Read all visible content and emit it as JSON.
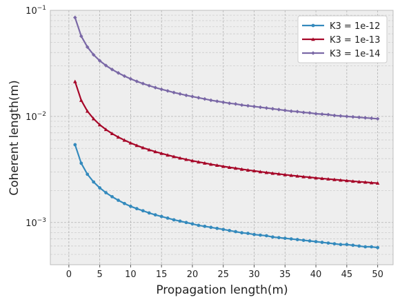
{
  "chart_data": {
    "type": "line",
    "xlabel": "Propagation length(m)",
    "ylabel": "Coherent length(m)",
    "xlim": [
      -3,
      52.5
    ],
    "ylim": [
      0.0004,
      0.1
    ],
    "y_scale": "log",
    "grid": true,
    "background": "#eeeeee",
    "legend_position": "top-right",
    "x_ticks": [
      0,
      5,
      10,
      15,
      20,
      25,
      30,
      35,
      40,
      45,
      50
    ],
    "y_ticks": [
      {
        "value": 0.001,
        "base": "10",
        "exp": "−3"
      },
      {
        "value": 0.01,
        "base": "10",
        "exp": "−2"
      },
      {
        "value": 0.1,
        "base": "10",
        "exp": "−1"
      }
    ],
    "x": [
      1,
      2,
      3,
      4,
      5,
      6,
      7,
      8,
      9,
      10,
      11,
      12,
      13,
      14,
      15,
      16,
      17,
      18,
      19,
      20,
      21,
      22,
      23,
      24,
      25,
      26,
      27,
      28,
      29,
      30,
      31,
      32,
      33,
      34,
      35,
      36,
      37,
      38,
      39,
      40,
      41,
      42,
      43,
      44,
      45,
      46,
      47,
      48,
      49,
      50
    ],
    "series": [
      {
        "name": "K3 = 1e-12",
        "color": "#348abd",
        "marker": "circle",
        "values": [
          0.00541,
          0.00362,
          0.00285,
          0.00241,
          0.00212,
          0.00191,
          0.00175,
          0.00162,
          0.00151,
          0.00142,
          0.00135,
          0.00129,
          0.00123,
          0.00118,
          0.00114,
          0.0011,
          0.00106,
          0.00103,
          0.001,
          0.00097,
          0.00094,
          0.00092,
          0.0009,
          0.00088,
          0.00086,
          0.00084,
          0.00082,
          0.0008,
          0.00079,
          0.00077,
          0.00076,
          0.00075,
          0.00073,
          0.00072,
          0.00071,
          0.0007,
          0.00069,
          0.00068,
          0.00067,
          0.00066,
          0.00065,
          0.00064,
          0.00063,
          0.00062,
          0.00062,
          0.00061,
          0.0006,
          0.00059,
          0.00059,
          0.00058
        ]
      },
      {
        "name": "K3 = 1e-13",
        "color": "#a60628",
        "marker": "triangle",
        "values": [
          0.0213,
          0.0142,
          0.0112,
          0.0095,
          0.00834,
          0.00752,
          0.00689,
          0.00638,
          0.00597,
          0.00562,
          0.00532,
          0.00507,
          0.00485,
          0.00465,
          0.00448,
          0.00432,
          0.00418,
          0.00405,
          0.00393,
          0.00382,
          0.00372,
          0.00363,
          0.00354,
          0.00346,
          0.00338,
          0.00331,
          0.00325,
          0.00318,
          0.00312,
          0.00307,
          0.00301,
          0.00296,
          0.00291,
          0.00287,
          0.00282,
          0.00278,
          0.00274,
          0.0027,
          0.00267,
          0.00263,
          0.0026,
          0.00257,
          0.00254,
          0.00251,
          0.00248,
          0.00245,
          0.00242,
          0.0024,
          0.00237,
          0.00235
        ]
      },
      {
        "name": "K3 = 1e-14",
        "color": "#7a68a6",
        "marker": "diamond",
        "values": [
          0.0855,
          0.0571,
          0.0451,
          0.0381,
          0.0335,
          0.0302,
          0.0277,
          0.0257,
          0.024,
          0.0226,
          0.0214,
          0.0204,
          0.0195,
          0.0187,
          0.018,
          0.0174,
          0.0168,
          0.0163,
          0.0158,
          0.0154,
          0.015,
          0.0146,
          0.0142,
          0.0139,
          0.0136,
          0.0133,
          0.0131,
          0.0128,
          0.0126,
          0.0124,
          0.0122,
          0.012,
          0.0118,
          0.0116,
          0.0114,
          0.0112,
          0.0111,
          0.0109,
          0.0108,
          0.0106,
          0.0105,
          0.0104,
          0.0102,
          0.0101,
          0.01,
          0.0099,
          0.0098,
          0.0097,
          0.0096,
          0.0095
        ]
      }
    ]
  }
}
